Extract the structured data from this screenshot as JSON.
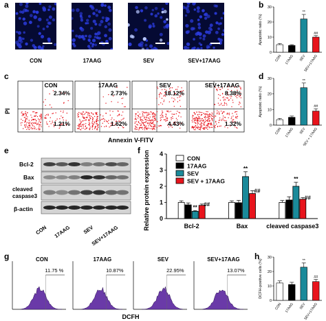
{
  "panels": {
    "a": "a",
    "b": "b",
    "c": "c",
    "d": "d",
    "e": "e",
    "f": "f",
    "g": "g",
    "h": "h"
  },
  "micro_labels": [
    "CON",
    "17AAG",
    "SEV",
    "SEV+17AAG"
  ],
  "flow_labels": [
    "CON",
    "17AAG",
    "SEV",
    "SEV+17AAG"
  ],
  "flow_ur": [
    "2.34%",
    "2.73%",
    "18.12%",
    "8.38%"
  ],
  "flow_lr": [
    "1.21%",
    "1.62%",
    "4.43%",
    "1.32%"
  ],
  "flow_axis_y": "PI",
  "flow_axis_x": "Annexin V-FITV",
  "wb_bands": [
    "Bcl-2",
    "Bax",
    "cleaved caspase3",
    "β-actin"
  ],
  "wb_lanes": [
    "CON",
    "17AAG",
    "SEV",
    "SEV+17AAG"
  ],
  "dcfh_labels": [
    "CON",
    "17AAG",
    "SEV",
    "SEV+17AAG"
  ],
  "dcfh_pct": [
    "11.75 %",
    "10.87%",
    "22.95%",
    "13.07%"
  ],
  "dcfh_axis": "DCFH",
  "chart_data": [
    {
      "panel": "b",
      "type": "bar",
      "categories": [
        "CON",
        "17AAG",
        "SEV",
        "SEV+17AAG"
      ],
      "values": [
        5,
        4.5,
        22,
        10
      ],
      "errors": [
        0.8,
        0.5,
        3,
        1
      ],
      "ylabel": "Apoptotic ratio (%)",
      "ylim": [
        0,
        30
      ],
      "yticks": [
        0,
        10,
        20,
        30
      ],
      "annotations": [
        "",
        "",
        "**",
        "##"
      ],
      "colors": [
        "#ffffff",
        "#000000",
        "#1a8a9a",
        "#e8141c"
      ]
    },
    {
      "panel": "d",
      "type": "bar",
      "categories": [
        "CON",
        "17AAG",
        "SEV",
        "SEV + 17AAG"
      ],
      "values": [
        3.5,
        5,
        24,
        9
      ],
      "errors": [
        0.8,
        0.8,
        3,
        1.5
      ],
      "ylabel": "Apoptotic ratio (%)",
      "ylim": [
        0,
        30
      ],
      "yticks": [
        0,
        10,
        20,
        30
      ],
      "annotations": [
        "",
        "",
        "**",
        "##"
      ],
      "colors": [
        "#ffffff",
        "#000000",
        "#1a8a9a",
        "#e8141c"
      ]
    },
    {
      "panel": "f",
      "type": "bar",
      "categories": [
        "Bcl-2",
        "Bax",
        "cleaved caspase3"
      ],
      "series": [
        {
          "name": "CON",
          "values": [
            1,
            1,
            1
          ],
          "errors": [
            0.1,
            0.1,
            0.12
          ]
        },
        {
          "name": "17AAG",
          "values": [
            0.85,
            0.98,
            1.15
          ],
          "errors": [
            0.12,
            0.15,
            0.2
          ]
        },
        {
          "name": "SEV",
          "values": [
            0.45,
            2.6,
            2.0
          ],
          "errors": [
            0.05,
            0.3,
            0.25
          ]
        },
        {
          "name": "SEV + 17AAG",
          "values": [
            0.82,
            1.55,
            1.2
          ],
          "errors": [
            0.08,
            0.18,
            0.1
          ]
        }
      ],
      "annotations": {
        "Bcl-2": [
          "",
          "",
          "**",
          "##"
        ],
        "Bax": [
          "",
          "",
          "**",
          "##"
        ],
        "cleaved caspase3": [
          "",
          "",
          "**",
          "##"
        ]
      },
      "ylabel": "Relative protein expression",
      "ylim": [
        0,
        4
      ],
      "yticks": [
        0,
        1,
        2,
        3,
        4
      ],
      "colors": [
        "#ffffff",
        "#000000",
        "#1a8a9a",
        "#e8141c"
      ]
    },
    {
      "panel": "h",
      "type": "bar",
      "categories": [
        "CON",
        "17AAG",
        "SEV",
        "SEV+17AAG"
      ],
      "values": [
        12,
        11,
        23,
        13
      ],
      "errors": [
        1.5,
        1.5,
        3,
        1.5
      ],
      "ylabel": "DCFH-positive cells (%)",
      "ylim": [
        0,
        30
      ],
      "yticks": [
        0,
        10,
        20,
        30
      ],
      "annotations": [
        "",
        "",
        "**",
        "##"
      ],
      "colors": [
        "#ffffff",
        "#000000",
        "#1a8a9a",
        "#e8141c"
      ]
    }
  ]
}
